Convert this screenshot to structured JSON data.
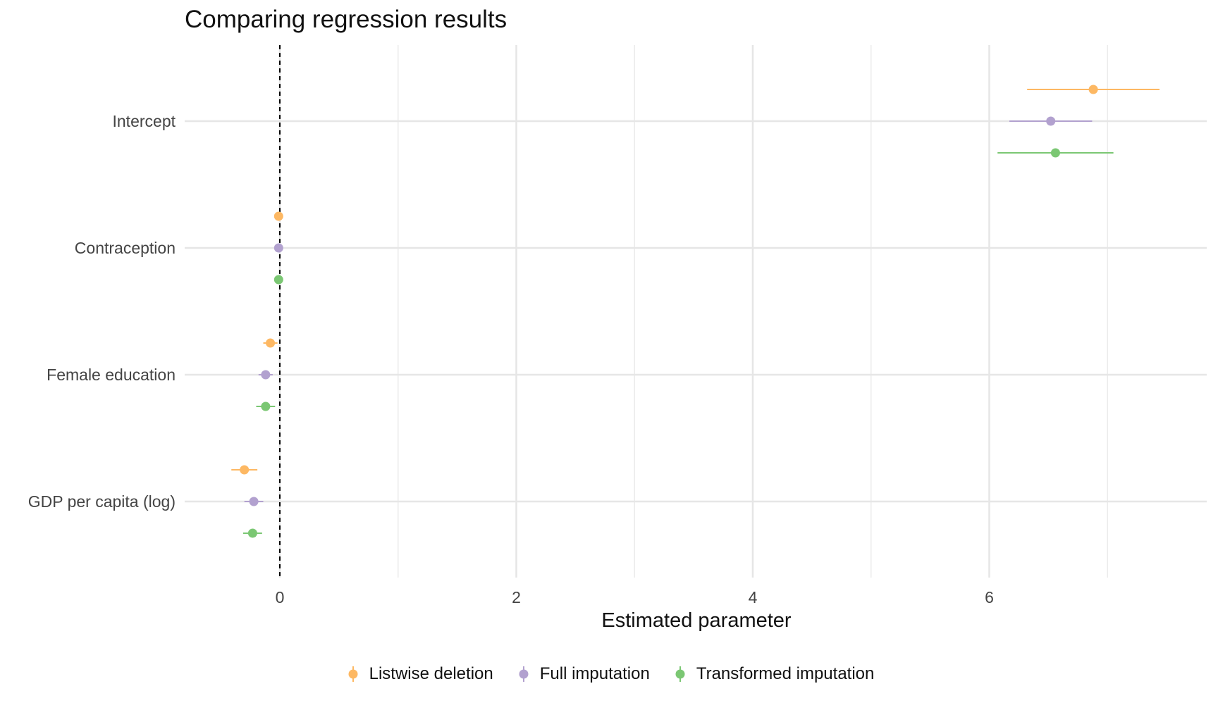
{
  "chart_data": {
    "type": "scatter",
    "subtype": "coefficient-plot",
    "title": "Comparing regression results",
    "xlabel": "Estimated parameter",
    "ylabel": "",
    "xlim": [
      -0.8,
      7.85
    ],
    "x_ticks": [
      0,
      2,
      4,
      6
    ],
    "categories": [
      "Intercept",
      "Contraception",
      "Female education",
      "GDP per capita (log)"
    ],
    "reference_line": {
      "x": 0,
      "style": "dashed"
    },
    "grid": true,
    "legend_position": "bottom",
    "series": [
      {
        "name": "Listwise deletion",
        "color": "#FDB863",
        "points": [
          {
            "category": "Intercept",
            "estimate": 6.88,
            "lower": 6.32,
            "upper": 7.44
          },
          {
            "category": "Contraception",
            "estimate": -0.01,
            "lower": -0.02,
            "upper": 0.0
          },
          {
            "category": "Female education",
            "estimate": -0.08,
            "lower": -0.14,
            "upper": -0.02
          },
          {
            "category": "GDP per capita (log)",
            "estimate": -0.3,
            "lower": -0.41,
            "upper": -0.19
          }
        ]
      },
      {
        "name": "Full imputation",
        "color": "#B2A1CF",
        "points": [
          {
            "category": "Intercept",
            "estimate": 6.52,
            "lower": 6.17,
            "upper": 6.87
          },
          {
            "category": "Contraception",
            "estimate": -0.01,
            "lower": -0.02,
            "upper": 0.0
          },
          {
            "category": "Female education",
            "estimate": -0.12,
            "lower": -0.18,
            "upper": -0.06
          },
          {
            "category": "GDP per capita (log)",
            "estimate": -0.22,
            "lower": -0.3,
            "upper": -0.14
          }
        ]
      },
      {
        "name": "Transformed imputation",
        "color": "#7BC773",
        "points": [
          {
            "category": "Intercept",
            "estimate": 6.56,
            "lower": 6.07,
            "upper": 7.05
          },
          {
            "category": "Contraception",
            "estimate": -0.01,
            "lower": -0.02,
            "upper": 0.0
          },
          {
            "category": "Female education",
            "estimate": -0.12,
            "lower": -0.2,
            "upper": -0.04
          },
          {
            "category": "GDP per capita (log)",
            "estimate": -0.23,
            "lower": -0.31,
            "upper": -0.15
          }
        ]
      }
    ]
  }
}
